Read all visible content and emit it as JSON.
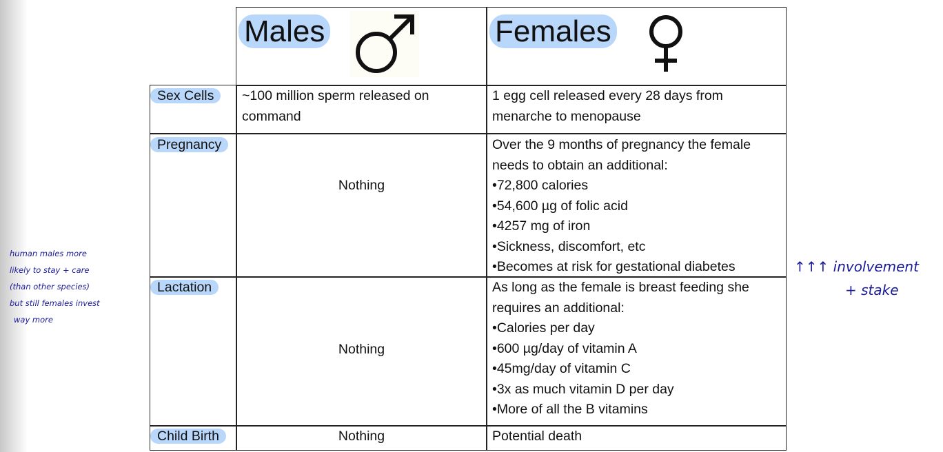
{
  "header": {
    "males": "Males",
    "females": "Females",
    "male_icon": "male-symbol-icon",
    "female_icon": "female-symbol-icon"
  },
  "rows": [
    {
      "label": "Sex Cells",
      "males": "~100 million sperm released on command",
      "females": "1 egg cell released every 28 days from menarche to menopause"
    },
    {
      "label": "Pregnancy",
      "males": "Nothing",
      "females_intro": "Over the 9 months of pregnancy the female needs to obtain an additional:",
      "females_items": [
        "•72,800 calories",
        "•54,600 µg of folic acid",
        "•4257 mg of iron",
        "•Sickness, discomfort, etc",
        "•Becomes at risk for gestational diabetes"
      ]
    },
    {
      "label": "Lactation",
      "males": "Nothing",
      "females_intro": "As long as the female is breast feeding she requires an additional:",
      "females_items": [
        "•Calories per day",
        "•600 µg/day of vitamin A",
        "•45mg/day of vitamin C",
        "•3x as much vitamin D per day",
        "•More of all the B vitamins"
      ]
    },
    {
      "label": "Child Birth",
      "males": "Nothing",
      "females": "Potential death"
    }
  ],
  "annotations": {
    "left": [
      "human males more",
      "likely to stay + care",
      "(than other species)",
      "but still females invest",
      "way more"
    ],
    "right": [
      "↑↑↑ involvement",
      "+ stake"
    ]
  },
  "colors": {
    "highlight": "#b9d7fb",
    "ink": "#1a1a9a"
  }
}
